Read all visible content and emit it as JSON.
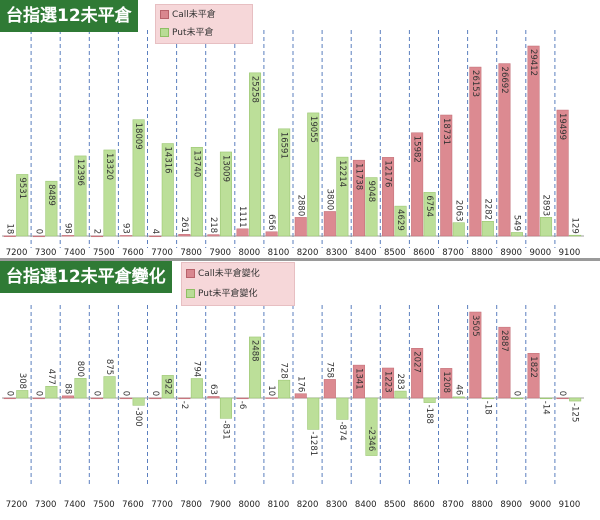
{
  "colors": {
    "call": "#dc8a91",
    "put": "#bcdf99",
    "call_stroke": "#c06b73",
    "put_stroke": "#93c168",
    "grid": "#5b7fbf",
    "title_bg": "#2f7a35"
  },
  "chart_data": [
    {
      "type": "bar",
      "title": "台指選12未平倉",
      "legend": [
        "Call未平倉",
        "Put未平倉"
      ],
      "legend_position": "top-center",
      "categories": [
        "7200",
        "7300",
        "7400",
        "7500",
        "7600",
        "7700",
        "7800",
        "7900",
        "8000",
        "8100",
        "8200",
        "8300",
        "8400",
        "8500",
        "8600",
        "8700",
        "8800",
        "8900",
        "9000",
        "9100"
      ],
      "series": [
        {
          "name": "Call未平倉",
          "values": [
            18,
            0,
            98,
            2,
            93,
            4,
            261,
            218,
            1111,
            656,
            2880,
            3800,
            11738,
            12176,
            15982,
            18731,
            26153,
            26692,
            29412,
            19499
          ],
          "labels": [
            "18",
            "0",
            "98",
            "2",
            "93",
            "4",
            "261",
            "218",
            "1111",
            "656",
            "2880",
            "3800",
            "11738",
            "12176",
            "15982",
            "18731",
            "26153",
            "26692",
            "29412",
            "19499"
          ]
        },
        {
          "name": "Put未平倉",
          "values": [
            9531,
            8489,
            12396,
            13320,
            18009,
            14316,
            13740,
            13009,
            25258,
            16591,
            19055,
            12214,
            9048,
            4629,
            6754,
            2063,
            2282,
            549,
            2893,
            129
          ],
          "labels": [
            "9531",
            "8489",
            "12396",
            "13320",
            "18009",
            "14316",
            "13740",
            "13009",
            "25258",
            "16591",
            "19055",
            "12214",
            "9048",
            "4629",
            "6754",
            "2063",
            "2282",
            "549",
            "2893",
            "129"
          ]
        }
      ],
      "ylim": [
        0,
        32000
      ],
      "grid": "vertical dashed"
    },
    {
      "type": "bar",
      "title": "台指選12未平倉變化",
      "legend": [
        "Call未平倉變化",
        "Put未平倉變化"
      ],
      "legend_position": "top-center",
      "categories": [
        "7200",
        "7300",
        "7400",
        "7500",
        "7600",
        "7700",
        "7800",
        "7900",
        "8000",
        "8100",
        "8200",
        "8300",
        "8400",
        "8500",
        "8600",
        "8700",
        "8800",
        "8900",
        "9000",
        "9100"
      ],
      "series": [
        {
          "name": "Call未平倉變化",
          "values": [
            0,
            0,
            88,
            0,
            0,
            0,
            -2,
            63,
            -6,
            10,
            176,
            758,
            1341,
            1223,
            2027,
            1208,
            3505,
            2887,
            1822,
            0
          ],
          "labels": [
            "0",
            "0",
            "88",
            "0",
            "0",
            "0",
            "-2",
            "63",
            "-6",
            "10",
            "176",
            "758",
            "1341",
            "1223",
            "2027",
            "1208",
            "3505",
            "2887",
            "1822",
            "0"
          ]
        },
        {
          "name": "Put未平倉變化",
          "values": [
            308,
            477,
            800,
            875,
            -300,
            922,
            794,
            -831,
            2488,
            728,
            -1281,
            -874,
            -2346,
            283,
            -188,
            46,
            -18,
            0,
            -14,
            -125
          ],
          "labels": [
            "308",
            "477",
            "800",
            "875",
            "-300",
            "922",
            "794",
            "-831",
            "2488",
            "728",
            "-1281",
            "-874",
            "-2346",
            "283",
            "-188",
            "46",
            "-18",
            "0",
            "-14",
            "-125"
          ]
        }
      ],
      "ylim": [
        -3000,
        4000
      ],
      "grid": "vertical dashed"
    }
  ]
}
